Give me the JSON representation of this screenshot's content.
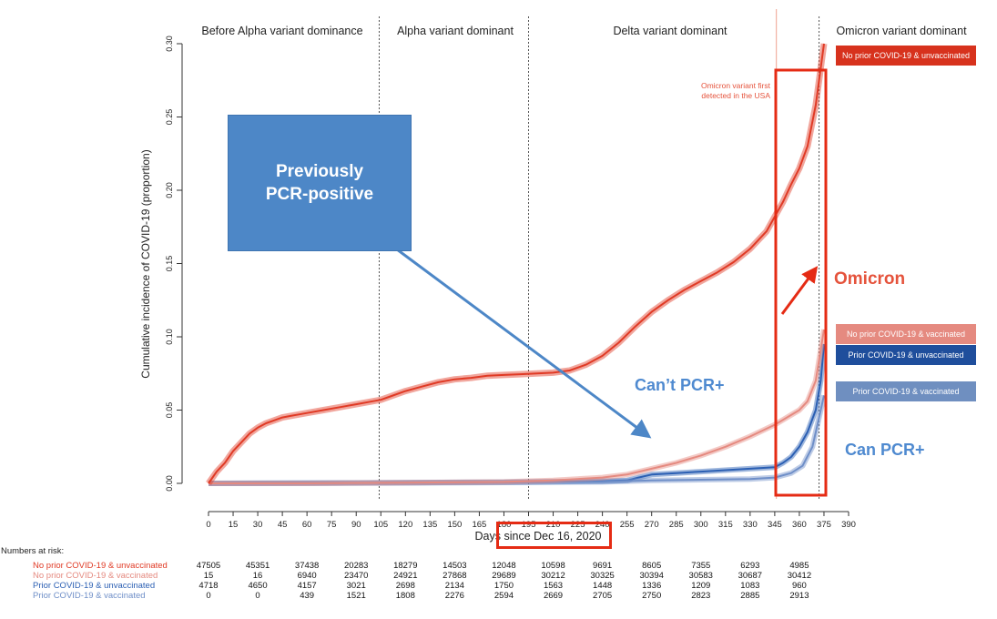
{
  "chart_data": {
    "type": "line",
    "title": "",
    "xlabel": "Days since Dec 16, 2020",
    "ylabel": "Cumulative incidence of COVID-19 (proportion)",
    "xlim": [
      0,
      390
    ],
    "ylim": [
      0,
      0.3
    ],
    "x_ticks": [
      0,
      15,
      30,
      45,
      60,
      75,
      90,
      105,
      120,
      135,
      150,
      165,
      180,
      195,
      210,
      225,
      240,
      255,
      270,
      285,
      300,
      315,
      330,
      345,
      360,
      375,
      390
    ],
    "y_ticks": [
      "0.00",
      "0.05",
      "0.10",
      "0.15",
      "0.20",
      "0.25",
      "0.30"
    ],
    "grid": false,
    "periods": [
      {
        "label": "Before Alpha variant dominance",
        "start": 0,
        "end": 104
      },
      {
        "label": "Alpha variant dominant",
        "start": 104,
        "end": 195
      },
      {
        "label": "Delta variant dominant",
        "start": 195,
        "end": 372
      },
      {
        "label": "Omicron variant dominant",
        "start": 372,
        "end": 390
      }
    ],
    "omicron_first_detected_day": 346,
    "series": [
      {
        "name": "No prior COVID-19 & unvaccinated",
        "color": "#e03a25",
        "x": [
          0,
          5,
          10,
          15,
          20,
          25,
          30,
          35,
          40,
          45,
          50,
          55,
          60,
          70,
          80,
          90,
          100,
          105,
          110,
          120,
          130,
          140,
          150,
          160,
          170,
          180,
          190,
          200,
          210,
          220,
          230,
          240,
          250,
          260,
          270,
          280,
          290,
          300,
          310,
          320,
          330,
          340,
          345,
          350,
          355,
          360,
          365,
          370,
          375
        ],
        "y": [
          0,
          0.008,
          0.014,
          0.022,
          0.028,
          0.034,
          0.038,
          0.041,
          0.043,
          0.045,
          0.046,
          0.047,
          0.048,
          0.05,
          0.052,
          0.054,
          0.056,
          0.057,
          0.059,
          0.063,
          0.066,
          0.069,
          0.071,
          0.072,
          0.0735,
          0.074,
          0.0745,
          0.075,
          0.0755,
          0.077,
          0.081,
          0.087,
          0.096,
          0.107,
          0.117,
          0.125,
          0.132,
          0.138,
          0.144,
          0.151,
          0.16,
          0.172,
          0.182,
          0.192,
          0.204,
          0.215,
          0.23,
          0.258,
          0.3
        ]
      },
      {
        "name": "No prior COVID-19 & vaccinated",
        "color": "#e58a80",
        "x": [
          0,
          60,
          120,
          180,
          210,
          240,
          255,
          270,
          285,
          300,
          315,
          330,
          345,
          360,
          365,
          370,
          375
        ],
        "y": [
          0,
          0,
          0.0005,
          0.001,
          0.002,
          0.004,
          0.006,
          0.01,
          0.014,
          0.019,
          0.025,
          0.032,
          0.04,
          0.05,
          0.056,
          0.07,
          0.105
        ]
      },
      {
        "name": "Prior COVID-19 & unvaccinated",
        "color": "#2b5fb3",
        "x": [
          0,
          90,
          180,
          240,
          255,
          262,
          270,
          285,
          300,
          315,
          330,
          345,
          350,
          355,
          360,
          365,
          370,
          373,
          375
        ],
        "y": [
          0,
          0.0003,
          0.0008,
          0.0015,
          0.002,
          0.004,
          0.006,
          0.007,
          0.008,
          0.009,
          0.01,
          0.011,
          0.014,
          0.018,
          0.025,
          0.035,
          0.05,
          0.07,
          0.095
        ]
      },
      {
        "name": "Prior COVID-19 & vaccinated",
        "color": "#6f8fc8",
        "x": [
          0,
          120,
          180,
          240,
          270,
          300,
          330,
          345,
          355,
          362,
          368,
          372,
          375
        ],
        "y": [
          0,
          0.0003,
          0.0006,
          0.001,
          0.002,
          0.0025,
          0.003,
          0.004,
          0.007,
          0.012,
          0.025,
          0.045,
          0.06
        ]
      }
    ]
  },
  "annotations": {
    "callout_line1": "Previously",
    "callout_line2": "PCR-positive",
    "omicron": "Omicron",
    "cant_pcr": "Can’t PCR+",
    "can_pcr": "Can PCR+",
    "first_detected_line1": "Omicron variant first",
    "first_detected_line2": "detected in the USA"
  },
  "legend": [
    {
      "label": "No prior COVID-19 & unvaccinated",
      "color": "#d7321d"
    },
    {
      "label": "No prior COVID-19 & vaccinated",
      "color": "#e58a80"
    },
    {
      "label": "Prior COVID-19 & unvaccinated",
      "color": "#1f4e9c"
    },
    {
      "label": "Prior COVID-19 & vaccinated",
      "color": "#6f8fc0"
    }
  ],
  "risk_table": {
    "title": "Numbers at risk:",
    "days": [
      0,
      30,
      60,
      90,
      120,
      150,
      180,
      210,
      240,
      270,
      300,
      330,
      360
    ],
    "rows": [
      {
        "label": "No prior COVID-19 & unvaccinated",
        "color": "#e03a25",
        "values": [
          "47505",
          "45351",
          "37438",
          "20283",
          "18279",
          "14503",
          "12048",
          "10598",
          "9691",
          "8605",
          "7355",
          "6293",
          "4985"
        ]
      },
      {
        "label": "No prior COVID-19 & vaccinated",
        "color": "#e58a80",
        "values": [
          "15",
          "16",
          "6940",
          "23470",
          "24921",
          "27868",
          "29689",
          "30212",
          "30325",
          "30394",
          "30583",
          "30687",
          "30412"
        ]
      },
      {
        "label": "Prior COVID-19 & unvaccinated",
        "color": "#2b5fb3",
        "values": [
          "4718",
          "4650",
          "4157",
          "3021",
          "2698",
          "2134",
          "1750",
          "1563",
          "1448",
          "1336",
          "1209",
          "1083",
          "960"
        ]
      },
      {
        "label": "Prior COVID-19 & vaccinated",
        "color": "#6f8fc8",
        "values": [
          "0",
          "0",
          "439",
          "1521",
          "1808",
          "2276",
          "2594",
          "2669",
          "2705",
          "2750",
          "2823",
          "2885",
          "2913"
        ]
      }
    ]
  }
}
